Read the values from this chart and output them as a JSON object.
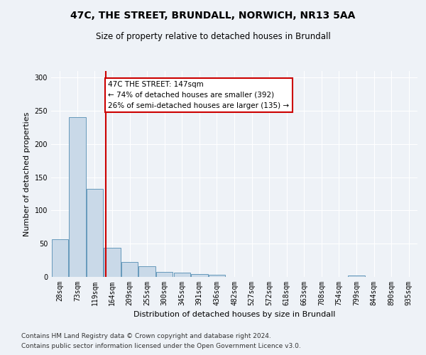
{
  "title1": "47C, THE STREET, BRUNDALL, NORWICH, NR13 5AA",
  "title2": "Size of property relative to detached houses in Brundall",
  "xlabel": "Distribution of detached houses by size in Brundall",
  "ylabel": "Number of detached properties",
  "footer1": "Contains HM Land Registry data © Crown copyright and database right 2024.",
  "footer2": "Contains public sector information licensed under the Open Government Licence v3.0.",
  "bin_labels": [
    "28sqm",
    "73sqm",
    "119sqm",
    "164sqm",
    "209sqm",
    "255sqm",
    "300sqm",
    "345sqm",
    "391sqm",
    "436sqm",
    "482sqm",
    "527sqm",
    "572sqm",
    "618sqm",
    "663sqm",
    "708sqm",
    "754sqm",
    "799sqm",
    "844sqm",
    "890sqm",
    "935sqm"
  ],
  "bar_values": [
    57,
    241,
    133,
    44,
    22,
    16,
    7,
    6,
    4,
    3,
    0,
    0,
    0,
    0,
    0,
    0,
    0,
    2,
    0,
    0,
    0
  ],
  "bar_color": "#c9d9e8",
  "bar_edgecolor": "#6699bb",
  "ylim": [
    0,
    310
  ],
  "yticks": [
    0,
    50,
    100,
    150,
    200,
    250,
    300
  ],
  "property_line_x": 147,
  "bin_edges": [
    28,
    73,
    119,
    164,
    209,
    255,
    300,
    345,
    391,
    436,
    482,
    527,
    572,
    618,
    663,
    708,
    754,
    799,
    844,
    890,
    935
  ],
  "bin_width": 45,
  "annotation_title": "47C THE STREET: 147sqm",
  "annotation_line1": "← 74% of detached houses are smaller (392)",
  "annotation_line2": "26% of semi-detached houses are larger (135) →",
  "annotation_box_color": "#ffffff",
  "annotation_box_edgecolor": "#cc0000",
  "vline_color": "#cc0000",
  "background_color": "#eef2f7",
  "grid_color": "#ffffff",
  "title1_fontsize": 10,
  "title2_fontsize": 8.5,
  "xlabel_fontsize": 8,
  "ylabel_fontsize": 8,
  "tick_fontsize": 7,
  "footer_fontsize": 6.5,
  "annotation_fontsize": 7.5
}
